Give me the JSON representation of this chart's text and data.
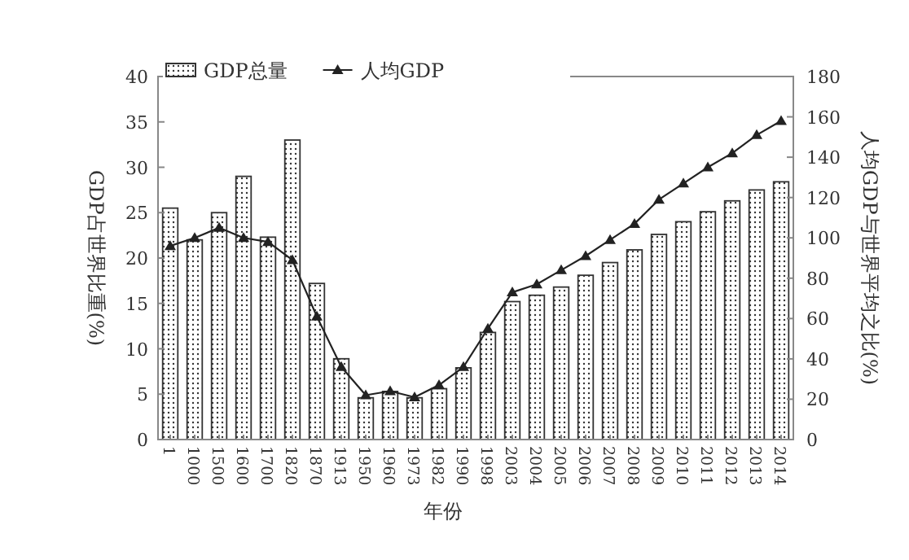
{
  "chart_data": {
    "type": "bar",
    "categories": [
      "1",
      "1000",
      "1500",
      "1600",
      "1700",
      "1820",
      "1870",
      "1913",
      "1950",
      "1960",
      "1973",
      "1982",
      "1990",
      "1998",
      "2003",
      "2004",
      "2005",
      "2006",
      "2007",
      "2008",
      "2009",
      "2010",
      "2011",
      "2012",
      "2013",
      "2014"
    ],
    "series": [
      {
        "name": "GDP总量",
        "color": "#333333",
        "values": [
          25.5,
          22,
          25,
          29,
          22.3,
          33,
          17.2,
          8.9,
          4.6,
          5.3,
          4.6,
          5.6,
          7.9,
          11.8,
          15.2,
          15.9,
          16.8,
          18.1,
          19.5,
          20.9,
          22.6,
          24.0,
          25.1,
          26.3,
          27.5,
          28.4
        ]
      },
      {
        "name": "人均GDP",
        "type": "line",
        "axis": "y2",
        "color": "#222222",
        "values": [
          96,
          100,
          105,
          100,
          98,
          89,
          61,
          36,
          22,
          24,
          21,
          27,
          36,
          55,
          73,
          77,
          84,
          91,
          99,
          107,
          119,
          127,
          135,
          142,
          151,
          158
        ]
      }
    ],
    "xlabel": "年份",
    "ylabel": "GDP占世界比重(%)",
    "y2label": "人均GDP与世界平均之比(%)",
    "ylim": [
      0,
      40
    ],
    "yticks": [
      0,
      5,
      10,
      15,
      20,
      25,
      30,
      35,
      40
    ],
    "y2lim": [
      0,
      180
    ],
    "y2ticks": [
      0,
      20,
      40,
      60,
      80,
      100,
      120,
      140,
      160,
      180
    ],
    "legend": "top left",
    "marker": "triangle",
    "grid": false
  }
}
